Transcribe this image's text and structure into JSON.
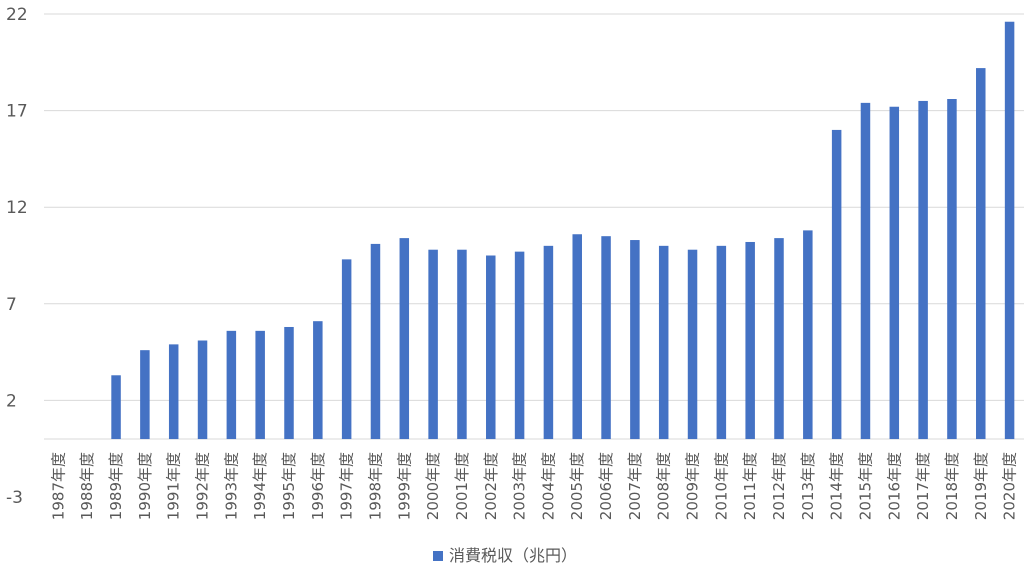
{
  "chart_data": {
    "type": "bar",
    "categories": [
      "1987年度",
      "1988年度",
      "1989年度",
      "1990年度",
      "1991年度",
      "1992年度",
      "1993年度",
      "1994年度",
      "1995年度",
      "1996年度",
      "1997年度",
      "1998年度",
      "1999年度",
      "2000年度",
      "2001年度",
      "2002年度",
      "2003年度",
      "2004年度",
      "2005年度",
      "2006年度",
      "2007年度",
      "2008年度",
      "2009年度",
      "2010年度",
      "2011年度",
      "2012年度",
      "2013年度",
      "2014年度",
      "2015年度",
      "2016年度",
      "2017年度",
      "2018年度",
      "2019年度",
      "2020年度"
    ],
    "series": [
      {
        "name": "消費税収（兆円）",
        "color": "#4472C4",
        "values": [
          0,
          0,
          3.3,
          4.6,
          4.9,
          5.1,
          5.6,
          5.6,
          5.8,
          6.1,
          9.3,
          10.1,
          10.4,
          9.8,
          9.8,
          9.5,
          9.7,
          10.0,
          10.6,
          10.5,
          10.3,
          10.0,
          9.8,
          10.0,
          10.2,
          10.4,
          10.8,
          16.0,
          17.4,
          17.2,
          17.5,
          17.6,
          19.2,
          21.6
        ]
      }
    ],
    "yticks": [
      22,
      17,
      12,
      7,
      2,
      -3
    ],
    "ylim": [
      -3,
      22
    ],
    "grid": true,
    "legend": "bottom-center",
    "title": "",
    "xlabel": "",
    "ylabel": ""
  }
}
